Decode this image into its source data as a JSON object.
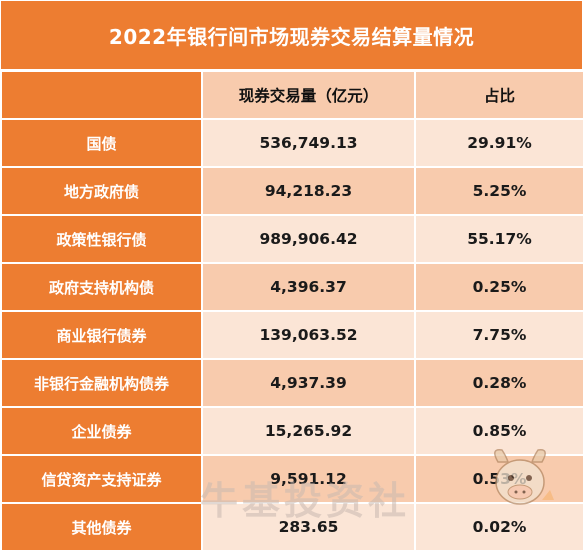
{
  "title": "2022年银行间市场现券交易结算量情况",
  "headers": {
    "col1": "现券交易量（亿元）",
    "col2": "占比"
  },
  "rows": [
    {
      "name": "国债",
      "volume": "536,749.13",
      "share": "29.91%"
    },
    {
      "name": "地方政府债",
      "volume": "94,218.23",
      "share": "5.25%"
    },
    {
      "name": "政策性银行债",
      "volume": "989,906.42",
      "share": "55.17%"
    },
    {
      "name": "政府支持机构债",
      "volume": "4,396.37",
      "share": "0.25%"
    },
    {
      "name": "商业银行债券",
      "volume": "139,063.52",
      "share": "7.75%"
    },
    {
      "name": "非银行金融机构债券",
      "volume": "4,937.39",
      "share": "0.28%"
    },
    {
      "name": "企业债券",
      "volume": "15,265.92",
      "share": "0.85%"
    },
    {
      "name": "信贷资产支持证券",
      "volume": "9,591.12",
      "share": "0.53%"
    },
    {
      "name": "其他债券",
      "volume": "283.65",
      "share": "0.02%"
    }
  ],
  "watermark": "牛基投资社",
  "colors": {
    "accent": "#ed7d31",
    "cell_light": "#fbe5d6",
    "cell_dark": "#f8cbad"
  }
}
